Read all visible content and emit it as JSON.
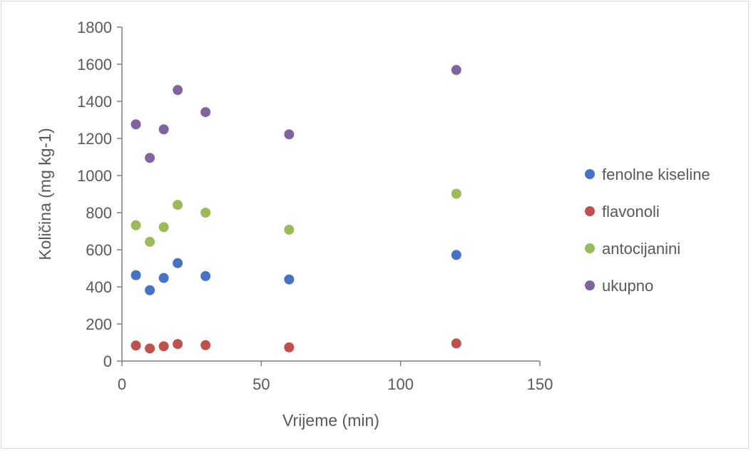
{
  "chart_data": {
    "type": "scatter",
    "title": "",
    "xlabel": "Vrijeme (min)",
    "ylabel": "Količina (mg kg-1)",
    "xlim": [
      0,
      150
    ],
    "ylim": [
      0,
      1800
    ],
    "xticks": [
      0,
      50,
      100,
      150
    ],
    "yticks": [
      0,
      200,
      400,
      600,
      800,
      1000,
      1200,
      1400,
      1600,
      1800
    ],
    "grid": false,
    "legend_position": "right",
    "x": [
      5,
      10,
      15,
      20,
      30,
      60,
      120
    ],
    "series": [
      {
        "name": "fenolne kiseline",
        "color": "#4472c4",
        "values": [
          463,
          382,
          448,
          528,
          458,
          440,
          572
        ]
      },
      {
        "name": "flavonoli",
        "color": "#c0504d",
        "values": [
          84,
          68,
          80,
          92,
          86,
          74,
          95
        ]
      },
      {
        "name": "antocijanini",
        "color": "#9bbb59",
        "values": [
          732,
          643,
          722,
          842,
          800,
          708,
          902
        ]
      },
      {
        "name": "ukupno",
        "color": "#8064a2",
        "values": [
          1276,
          1095,
          1249,
          1461,
          1342,
          1222,
          1569
        ]
      }
    ]
  }
}
